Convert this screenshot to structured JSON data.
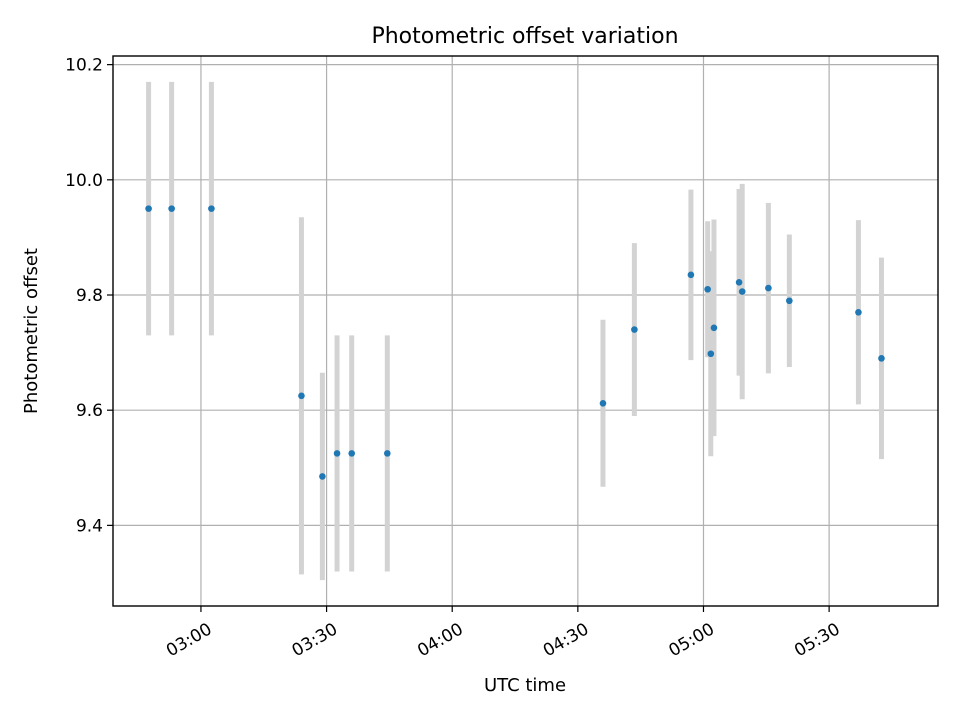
{
  "chart_data": {
    "type": "scatter",
    "title": "Photometric offset variation",
    "xlabel": "UTC time",
    "ylabel": "Photometric offset",
    "x_axis": {
      "kind": "time",
      "min": "02:39",
      "max": "05:56",
      "ticks": [
        "03:00",
        "03:30",
        "04:00",
        "04:30",
        "05:00",
        "05:30"
      ]
    },
    "y_axis": {
      "min": 9.26,
      "max": 10.215,
      "ticks": [
        "9.4",
        "9.6",
        "9.8",
        "10.0",
        "10.2"
      ]
    },
    "grid": true,
    "point_color": "#1f77b4",
    "errorbar_color": "#d3d3d3",
    "points": [
      {
        "x": "02:47:30",
        "y": 9.95,
        "err": 0.22
      },
      {
        "x": "02:53:00",
        "y": 9.95,
        "err": 0.22
      },
      {
        "x": "03:02:30",
        "y": 9.95,
        "err": 0.22
      },
      {
        "x": "03:24:00",
        "y": 9.625,
        "err": 0.31
      },
      {
        "x": "03:29:00",
        "y": 9.485,
        "err": 0.18
      },
      {
        "x": "03:32:30",
        "y": 9.525,
        "err": 0.205
      },
      {
        "x": "03:36:00",
        "y": 9.525,
        "err": 0.205
      },
      {
        "x": "03:44:30",
        "y": 9.525,
        "err": 0.205
      },
      {
        "x": "04:36:00",
        "y": 9.612,
        "err": 0.145
      },
      {
        "x": "04:43:30",
        "y": 9.74,
        "err": 0.15
      },
      {
        "x": "04:57:00",
        "y": 9.835,
        "err": 0.148
      },
      {
        "x": "05:01:00",
        "y": 9.81,
        "err": 0.118
      },
      {
        "x": "05:01:45",
        "y": 9.698,
        "err": 0.178
      },
      {
        "x": "05:02:30",
        "y": 9.743,
        "err": 0.188
      },
      {
        "x": "05:08:30",
        "y": 9.822,
        "err": 0.162
      },
      {
        "x": "05:09:15",
        "y": 9.806,
        "err": 0.187
      },
      {
        "x": "05:15:30",
        "y": 9.812,
        "err": 0.148
      },
      {
        "x": "05:20:30",
        "y": 9.79,
        "err": 0.115
      },
      {
        "x": "05:37:00",
        "y": 9.77,
        "err": 0.16
      },
      {
        "x": "05:42:30",
        "y": 9.69,
        "err": 0.175
      }
    ]
  }
}
